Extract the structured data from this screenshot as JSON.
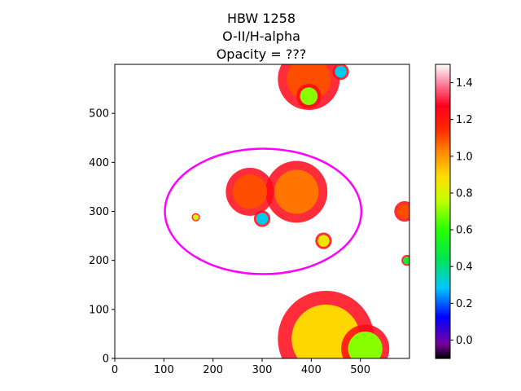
{
  "chart_data": {
    "type": "heatmap",
    "title_lines": [
      "HBW 1258",
      "O-II/H-alpha",
      "Opacity = ???"
    ],
    "xlim": [
      0,
      600
    ],
    "ylim": [
      0,
      600
    ],
    "xticks": [
      0,
      100,
      200,
      300,
      400,
      500
    ],
    "yticks": [
      0,
      100,
      200,
      300,
      400,
      500
    ],
    "colorbar": {
      "colormap": "gist_ncar-like (black-purple-blue-cyan-green-yellow-orange-red-white)",
      "ticks": [
        0.0,
        0.2,
        0.4,
        0.6,
        0.8,
        1.0,
        1.2,
        1.4
      ],
      "tick_labels": [
        "0.0",
        "0.2",
        "0.4",
        "0.6",
        "0.8",
        "1.0",
        "1.2",
        "1.4"
      ],
      "range": [
        -0.1,
        1.5
      ]
    },
    "ellipse": {
      "center": [
        302,
        300
      ],
      "semi_axes": [
        200,
        128
      ],
      "color": "#ff00ff"
    },
    "blobs": [
      {
        "x": 395,
        "y": 570,
        "r": 45,
        "value": 1.1
      },
      {
        "x": 460,
        "y": 585,
        "r": 12,
        "value": 0.3
      },
      {
        "x": 395,
        "y": 535,
        "r": 18,
        "value": 0.7
      },
      {
        "x": 370,
        "y": 340,
        "r": 45,
        "value": 1.05
      },
      {
        "x": 275,
        "y": 340,
        "r": 35,
        "value": 1.1
      },
      {
        "x": 300,
        "y": 285,
        "r": 12,
        "value": 0.3
      },
      {
        "x": 425,
        "y": 240,
        "r": 12,
        "value": 0.85
      },
      {
        "x": 165,
        "y": 288,
        "r": 6,
        "value": 0.8
      },
      {
        "x": 430,
        "y": 40,
        "r": 70,
        "value": 0.9
      },
      {
        "x": 510,
        "y": 20,
        "r": 35,
        "value": 0.7
      },
      {
        "x": 595,
        "y": 200,
        "r": 8,
        "value": 0.5
      },
      {
        "x": 590,
        "y": 300,
        "r": 15,
        "value": 1.1
      }
    ]
  }
}
